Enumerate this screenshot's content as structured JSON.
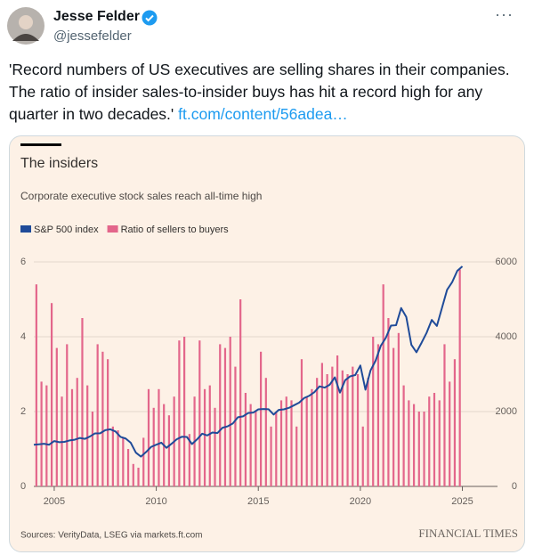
{
  "tweet": {
    "name": "Jesse Felder",
    "handle": "@jessefelder",
    "text": "'Record numbers of US executives are selling shares in their companies. The ratio of insider sales-to-insider buys has hit a record high for any quarter in two decades.'",
    "link": "ft.com/content/56adea…"
  },
  "chart_data": {
    "type": "bar",
    "title": "The insiders",
    "subtitle": "Corporate executive stock sales reach all-time high",
    "source": "Sources: VerityData, LSEG via markets.ft.com",
    "brand": "FINANCIAL TIMES",
    "xlim": [
      2004,
      2025.5
    ],
    "xticks": [
      2005,
      2010,
      2015,
      2020,
      2025
    ],
    "ylim": [
      0,
      6
    ],
    "yticks": [
      0,
      2,
      4,
      6
    ],
    "y2lim": [
      0,
      6000
    ],
    "y2ticks": [
      0,
      2000,
      4000,
      6000
    ],
    "grid": true,
    "series": [
      {
        "name": "S&P 500 index",
        "type": "line",
        "axis": "y2",
        "color": "#1f4b99",
        "x": [
          2004,
          2004.25,
          2004.5,
          2004.75,
          2005,
          2005.25,
          2005.5,
          2005.75,
          2006,
          2006.25,
          2006.5,
          2006.75,
          2007,
          2007.25,
          2007.5,
          2007.75,
          2008,
          2008.25,
          2008.5,
          2008.75,
          2009,
          2009.25,
          2009.5,
          2009.75,
          2010,
          2010.25,
          2010.5,
          2010.75,
          2011,
          2011.25,
          2011.5,
          2011.75,
          2012,
          2012.25,
          2012.5,
          2012.75,
          2013,
          2013.25,
          2013.5,
          2013.75,
          2014,
          2014.25,
          2014.5,
          2014.75,
          2015,
          2015.25,
          2015.5,
          2015.75,
          2016,
          2016.25,
          2016.5,
          2016.75,
          2017,
          2017.25,
          2017.5,
          2017.75,
          2018,
          2018.25,
          2018.5,
          2018.75,
          2019,
          2019.25,
          2019.5,
          2019.75,
          2020,
          2020.25,
          2020.5,
          2020.75,
          2021,
          2021.25,
          2021.5,
          2021.75,
          2022,
          2022.25,
          2022.5,
          2022.75,
          2023,
          2023.25,
          2023.5,
          2023.75,
          2024,
          2024.25,
          2024.5,
          2024.75,
          2025
        ],
        "values": [
          1112,
          1126,
          1140,
          1114,
          1212,
          1181,
          1191,
          1228,
          1248,
          1294,
          1270,
          1335,
          1418,
          1420,
          1503,
          1526,
          1468,
          1322,
          1280,
          1166,
          903,
          797,
          919,
          1057,
          1115,
          1169,
          1031,
          1141,
          1258,
          1326,
          1321,
          1131,
          1258,
          1408,
          1362,
          1441,
          1426,
          1569,
          1606,
          1682,
          1848,
          1872,
          1960,
          1972,
          2059,
          2068,
          2063,
          1920,
          2044,
          2060,
          2099,
          2168,
          2239,
          2363,
          2423,
          2519,
          2674,
          2641,
          2718,
          2914,
          2507,
          2834,
          2942,
          2977,
          3231,
          2585,
          3100,
          3363,
          3756,
          3973,
          4298,
          4308,
          4766,
          4530,
          3785,
          3586,
          3840,
          4109,
          4450,
          4288,
          4770,
          5254,
          5460,
          5762,
          5882
        ]
      },
      {
        "name": "Ratio of sellers to buyers",
        "type": "bar",
        "color": "#e3668b",
        "x": [
          2004.125,
          2004.375,
          2004.625,
          2004.875,
          2005.125,
          2005.375,
          2005.625,
          2005.875,
          2006.125,
          2006.375,
          2006.625,
          2006.875,
          2007.125,
          2007.375,
          2007.625,
          2007.875,
          2008.125,
          2008.375,
          2008.625,
          2008.875,
          2009.125,
          2009.375,
          2009.625,
          2009.875,
          2010.125,
          2010.375,
          2010.625,
          2010.875,
          2011.125,
          2011.375,
          2011.625,
          2011.875,
          2012.125,
          2012.375,
          2012.625,
          2012.875,
          2013.125,
          2013.375,
          2013.625,
          2013.875,
          2014.125,
          2014.375,
          2014.625,
          2014.875,
          2015.125,
          2015.375,
          2015.625,
          2015.875,
          2016.125,
          2016.375,
          2016.625,
          2016.875,
          2017.125,
          2017.375,
          2017.625,
          2017.875,
          2018.125,
          2018.375,
          2018.625,
          2018.875,
          2019.125,
          2019.375,
          2019.625,
          2019.875,
          2020.125,
          2020.375,
          2020.625,
          2020.875,
          2021.125,
          2021.375,
          2021.625,
          2021.875,
          2022.125,
          2022.375,
          2022.625,
          2022.875,
          2023.125,
          2023.375,
          2023.625,
          2023.875,
          2024.125,
          2024.375,
          2024.625,
          2024.875
        ],
        "values": [
          5.4,
          2.8,
          2.7,
          4.9,
          3.7,
          2.4,
          3.8,
          2.6,
          2.9,
          4.5,
          2.7,
          2.0,
          3.8,
          3.6,
          3.4,
          1.6,
          1.5,
          1.3,
          1.0,
          0.6,
          0.5,
          1.3,
          2.6,
          2.1,
          2.6,
          2.2,
          1.9,
          2.4,
          3.9,
          4.0,
          1.4,
          2.4,
          3.9,
          2.6,
          2.7,
          2.1,
          3.8,
          3.7,
          4.0,
          3.2,
          5.0,
          2.5,
          2.2,
          2.0,
          3.6,
          2.9,
          1.6,
          2.0,
          2.3,
          2.4,
          2.3,
          1.6,
          3.4,
          2.4,
          2.6,
          2.9,
          3.3,
          3.0,
          3.2,
          3.5,
          3.1,
          3.0,
          3.2,
          3.0,
          1.6,
          2.9,
          4.0,
          3.8,
          5.4,
          4.5,
          3.7,
          4.1,
          2.7,
          2.3,
          2.2,
          2.0,
          2.0,
          2.4,
          2.5,
          2.3,
          3.8,
          2.8,
          3.4,
          5.8
        ]
      }
    ]
  }
}
